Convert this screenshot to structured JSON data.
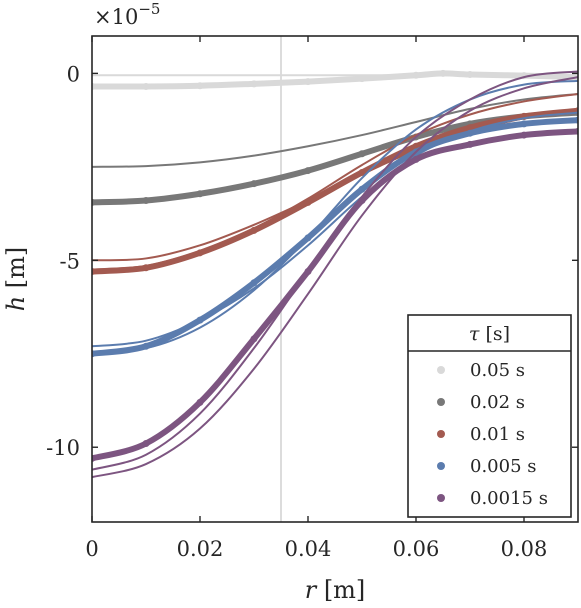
{
  "chart_data": {
    "type": "scatter",
    "xlabel_var": "r",
    "xlabel_unit": "[m]",
    "ylabel_var": "h",
    "ylabel_unit": "[m]",
    "y_multiplier": "×10",
    "y_multiplier_exp": "−5",
    "xlim": [
      0,
      0.09
    ],
    "ylim": [
      -12,
      1
    ],
    "x_ticks": [
      0,
      0.02,
      0.04,
      0.06,
      0.08
    ],
    "x_tick_labels": [
      "0",
      "0.02",
      "0.04",
      "0.06",
      "0.08"
    ],
    "y_ticks": [
      0,
      -5,
      -10
    ],
    "y_tick_labels": [
      "0",
      "-5",
      "-10"
    ],
    "vertical_line_x": 0.035,
    "legend": {
      "title_var": "τ",
      "title_unit": "[s]",
      "position": "bottom-right"
    },
    "series": [
      {
        "name": "0.05 s",
        "color": "#d9d9d9",
        "markers": [
          [
            0,
            -0.35
          ],
          [
            0.01,
            -0.35
          ],
          [
            0.02,
            -0.33
          ],
          [
            0.03,
            -0.28
          ],
          [
            0.04,
            -0.22
          ],
          [
            0.05,
            -0.14
          ],
          [
            0.06,
            -0.05
          ],
          [
            0.065,
            0.0
          ],
          [
            0.07,
            -0.03
          ],
          [
            0.08,
            -0.06
          ],
          [
            0.09,
            -0.1
          ]
        ],
        "fits": [
          [
            [
              0,
              -0.05
            ],
            [
              0.02,
              -0.05
            ],
            [
              0.04,
              -0.05
            ],
            [
              0.06,
              -0.05
            ],
            [
              0.08,
              -0.05
            ],
            [
              0.09,
              -0.05
            ]
          ]
        ]
      },
      {
        "name": "0.02 s",
        "color": "#787878",
        "markers": [
          [
            0,
            -3.45
          ],
          [
            0.01,
            -3.4
          ],
          [
            0.02,
            -3.22
          ],
          [
            0.03,
            -2.95
          ],
          [
            0.04,
            -2.6
          ],
          [
            0.05,
            -2.15
          ],
          [
            0.06,
            -1.7
          ],
          [
            0.07,
            -1.35
          ],
          [
            0.08,
            -1.15
          ],
          [
            0.09,
            -1.05
          ]
        ],
        "fits": [
          [
            [
              0,
              -2.5
            ],
            [
              0.01,
              -2.48
            ],
            [
              0.02,
              -2.38
            ],
            [
              0.03,
              -2.2
            ],
            [
              0.04,
              -1.95
            ],
            [
              0.05,
              -1.65
            ],
            [
              0.06,
              -1.3
            ],
            [
              0.07,
              -0.95
            ],
            [
              0.08,
              -0.7
            ],
            [
              0.09,
              -0.55
            ]
          ]
        ]
      },
      {
        "name": "0.01 s",
        "color": "#a35a50",
        "markers": [
          [
            0,
            -5.3
          ],
          [
            0.01,
            -5.2
          ],
          [
            0.02,
            -4.8
          ],
          [
            0.03,
            -4.2
          ],
          [
            0.04,
            -3.45
          ],
          [
            0.05,
            -2.65
          ],
          [
            0.06,
            -1.95
          ],
          [
            0.07,
            -1.45
          ],
          [
            0.08,
            -1.15
          ],
          [
            0.09,
            -1.0
          ]
        ],
        "fits": [
          [
            [
              0,
              -5.0
            ],
            [
              0.01,
              -4.95
            ],
            [
              0.02,
              -4.6
            ],
            [
              0.03,
              -4.05
            ],
            [
              0.04,
              -3.4
            ],
            [
              0.05,
              -2.7
            ],
            [
              0.06,
              -2.05
            ],
            [
              0.07,
              -1.55
            ],
            [
              0.08,
              -1.2
            ],
            [
              0.09,
              -0.95
            ]
          ],
          [
            [
              0,
              -5.25
            ],
            [
              0.01,
              -5.15
            ],
            [
              0.02,
              -4.75
            ],
            [
              0.03,
              -4.15
            ],
            [
              0.04,
              -3.35
            ],
            [
              0.05,
              -2.45
            ],
            [
              0.06,
              -1.65
            ],
            [
              0.07,
              -1.1
            ],
            [
              0.08,
              -0.75
            ],
            [
              0.09,
              -0.55
            ]
          ]
        ]
      },
      {
        "name": "0.005 s",
        "color": "#5b7cae",
        "markers": [
          [
            0,
            -7.5
          ],
          [
            0.01,
            -7.3
          ],
          [
            0.02,
            -6.6
          ],
          [
            0.03,
            -5.6
          ],
          [
            0.04,
            -4.4
          ],
          [
            0.05,
            -3.1
          ],
          [
            0.06,
            -2.1
          ],
          [
            0.07,
            -1.6
          ],
          [
            0.08,
            -1.35
          ],
          [
            0.09,
            -1.25
          ]
        ],
        "fits": [
          [
            [
              0,
              -7.3
            ],
            [
              0.01,
              -7.15
            ],
            [
              0.02,
              -6.6
            ],
            [
              0.03,
              -5.75
            ],
            [
              0.04,
              -4.6
            ],
            [
              0.05,
              -3.3
            ],
            [
              0.06,
              -2.2
            ],
            [
              0.07,
              -1.55
            ],
            [
              0.08,
              -1.2
            ],
            [
              0.09,
              -1.05
            ]
          ],
          [
            [
              0,
              -7.45
            ],
            [
              0.01,
              -7.35
            ],
            [
              0.02,
              -6.8
            ],
            [
              0.03,
              -5.8
            ],
            [
              0.04,
              -4.4
            ],
            [
              0.05,
              -2.8
            ],
            [
              0.06,
              -1.5
            ],
            [
              0.07,
              -0.7
            ],
            [
              0.08,
              -0.3
            ],
            [
              0.09,
              -0.2
            ]
          ]
        ]
      },
      {
        "name": "0.0015 s",
        "color": "#7d5581",
        "markers": [
          [
            0,
            -10.3
          ],
          [
            0.01,
            -9.9
          ],
          [
            0.02,
            -8.8
          ],
          [
            0.03,
            -7.1
          ],
          [
            0.04,
            -5.3
          ],
          [
            0.05,
            -3.4
          ],
          [
            0.06,
            -2.3
          ],
          [
            0.07,
            -1.9
          ],
          [
            0.08,
            -1.65
          ],
          [
            0.09,
            -1.55
          ]
        ],
        "fits": [
          [
            [
              0,
              -10.6
            ],
            [
              0.01,
              -10.2
            ],
            [
              0.02,
              -9.1
            ],
            [
              0.03,
              -7.35
            ],
            [
              0.04,
              -5.3
            ],
            [
              0.05,
              -3.3
            ],
            [
              0.06,
              -1.7
            ],
            [
              0.07,
              -0.7
            ],
            [
              0.08,
              -0.1
            ],
            [
              0.09,
              0.05
            ]
          ],
          [
            [
              0,
              -10.8
            ],
            [
              0.01,
              -10.45
            ],
            [
              0.02,
              -9.5
            ],
            [
              0.03,
              -7.9
            ],
            [
              0.04,
              -5.9
            ],
            [
              0.05,
              -3.8
            ],
            [
              0.06,
              -2.1
            ],
            [
              0.07,
              -1.0
            ],
            [
              0.08,
              -0.4
            ],
            [
              0.09,
              -0.1
            ]
          ]
        ]
      }
    ]
  }
}
